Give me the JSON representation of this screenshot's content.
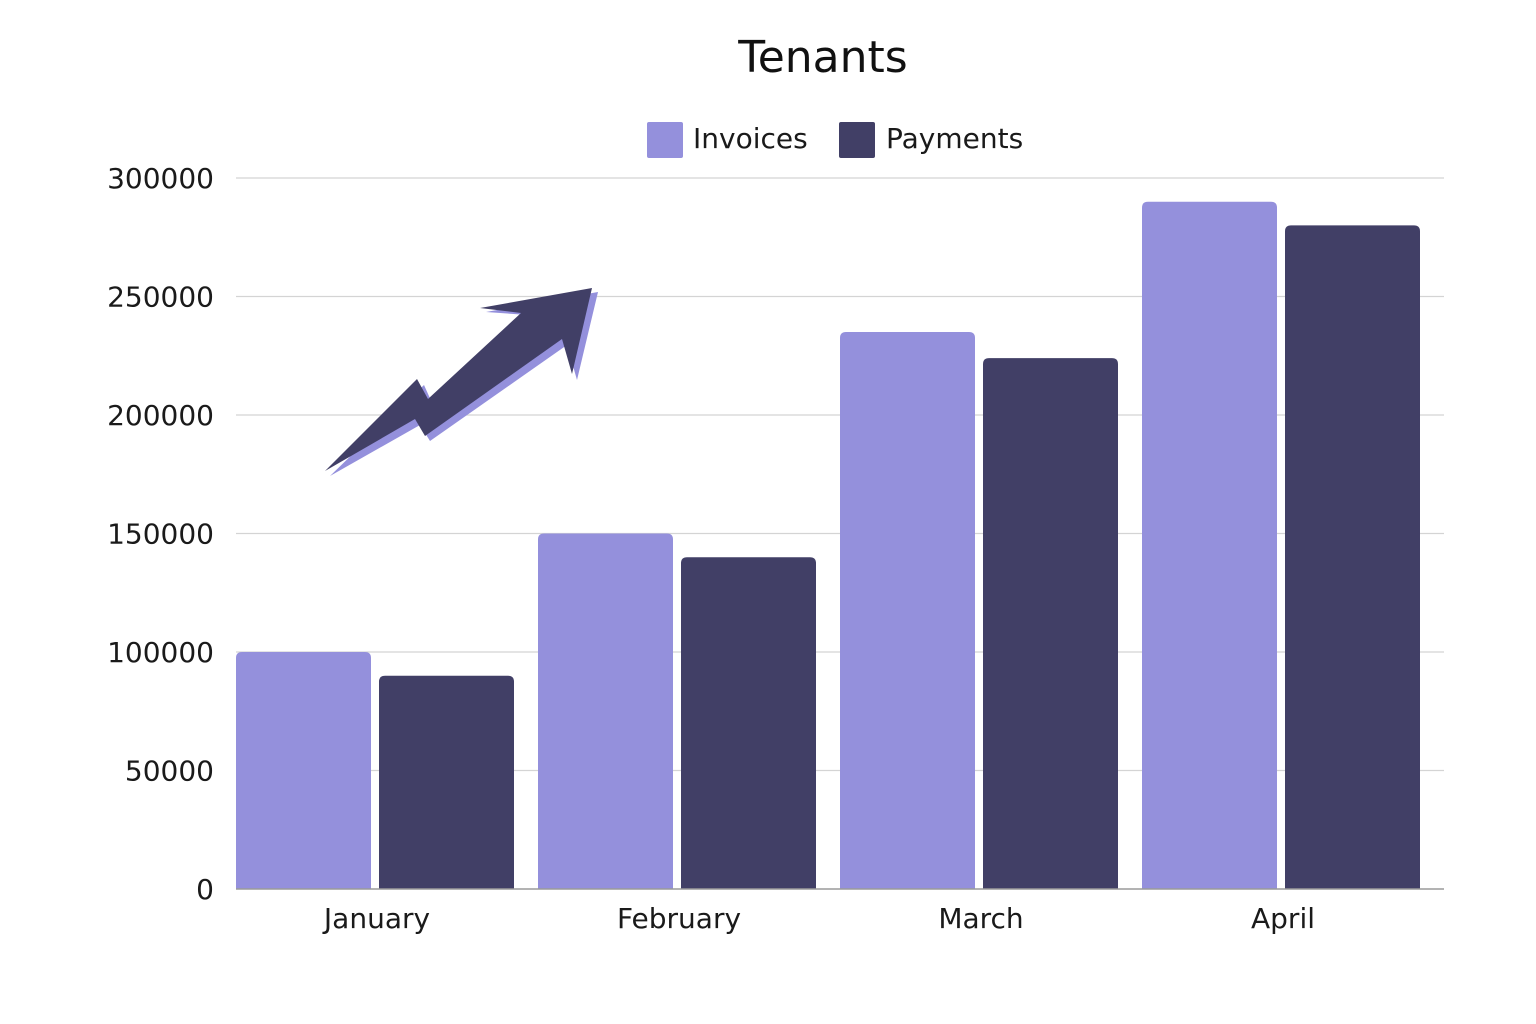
{
  "chart_data": {
    "type": "bar",
    "title": "Tenants",
    "xlabel": "",
    "ylabel": "",
    "categories": [
      "January",
      "February",
      "March",
      "April"
    ],
    "series": [
      {
        "name": "Invoices",
        "color": "#9490dc",
        "values": [
          100000,
          150000,
          235000,
          290000
        ]
      },
      {
        "name": "Payments",
        "color": "#413f66",
        "values": [
          90000,
          140000,
          224000,
          280000
        ]
      }
    ],
    "ylim": [
      0,
      300000
    ],
    "yticks": [
      "0",
      "50000",
      "100000",
      "150000",
      "200000",
      "250000",
      "300000"
    ],
    "grid": true,
    "legend_position": "top-center"
  },
  "decoration": {
    "icon": "trend-up-arrow-icon",
    "colors": {
      "front": "#413f66",
      "shadow": "#9490dc"
    }
  }
}
